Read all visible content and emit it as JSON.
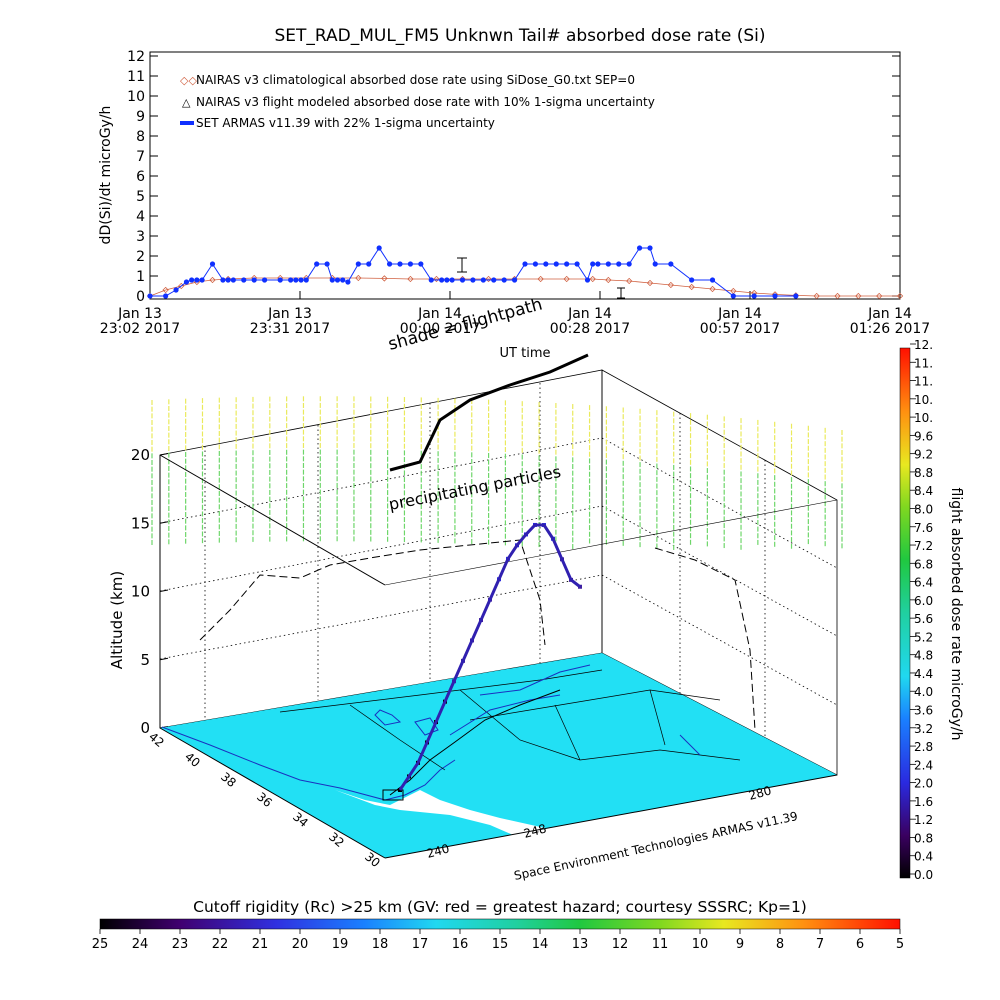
{
  "chart_data": [
    {
      "type": "line",
      "title": "SET_RAD_MUL_FM5 Unknwn Tail#  absorbed dose rate (Si)",
      "ylabel": "dD(Si)/dt microGy/h",
      "xlabel": "UT time",
      "ylim": [
        0,
        12
      ],
      "y_ticks": [
        "0",
        "1",
        "2",
        "3",
        "4",
        "5",
        "6",
        "7",
        "8",
        "9",
        "10",
        "11",
        "12"
      ],
      "x_ticks": [
        {
          "date": "Jan 13",
          "time": "23:02",
          "year": "2017"
        },
        {
          "date": "Jan 13",
          "time": "23:31",
          "year": "2017"
        },
        {
          "date": "Jan 14",
          "time": "00:00",
          "year": "2017"
        },
        {
          "date": "Jan 14",
          "time": "00:28",
          "year": "2017"
        },
        {
          "date": "Jan 14",
          "time": "00:57",
          "year": "2017"
        },
        {
          "date": "Jan 14",
          "time": "01:26",
          "year": "2017"
        }
      ],
      "xlim_minutes_after_2302": [
        0,
        144
      ],
      "legend": [
        "NAIRAS v3 climatological absorbed dose rate using SiDose_G0.txt SEP=0",
        "NAIRAS v3 flight modeled absorbed dose rate with 10% 1-sigma uncertainty",
        "SET ARMAS v11.39 with 22% 1-sigma uncertainty"
      ],
      "legend_position": "top-left",
      "series": [
        {
          "name": "NAIRAS v3 climatological absorbed dose rate using SiDose_G0.txt SEP=0",
          "color": "#d06040",
          "marker": "diamond",
          "x": [
            0,
            3,
            6,
            9,
            12,
            15,
            20,
            25,
            30,
            35,
            40,
            45,
            50,
            55,
            60,
            65,
            70,
            75,
            80,
            85,
            88,
            92,
            96,
            100,
            104,
            108,
            112,
            116,
            120,
            124,
            128,
            132,
            136,
            140,
            144
          ],
          "y": [
            0.0,
            0.3,
            0.5,
            0.7,
            0.8,
            0.85,
            0.9,
            0.9,
            0.9,
            0.9,
            0.9,
            0.88,
            0.85,
            0.85,
            0.85,
            0.85,
            0.85,
            0.85,
            0.85,
            0.85,
            0.8,
            0.75,
            0.65,
            0.55,
            0.45,
            0.35,
            0.25,
            0.15,
            0.08,
            0.03,
            0.0,
            0.0,
            0.0,
            0.0,
            0.0
          ]
        },
        {
          "name": "SET ARMAS v11.39 with 22% 1-sigma uncertainty",
          "color": "#1030ff",
          "marker": "filled-circle",
          "x": [
            0,
            3,
            5,
            7,
            8,
            9,
            10,
            12,
            14,
            15,
            16,
            18,
            20,
            22,
            25,
            27,
            28,
            29,
            30,
            32,
            34,
            35,
            36,
            37,
            38,
            40,
            42,
            44,
            46,
            48,
            50,
            52,
            54,
            56,
            57,
            58,
            60,
            62,
            64,
            66,
            68,
            70,
            72,
            74,
            76,
            78,
            80,
            82,
            84,
            85,
            86,
            88,
            90,
            92,
            94,
            96,
            97,
            100,
            104,
            108,
            112,
            116,
            120,
            124
          ],
          "y": [
            0,
            0,
            0.3,
            0.7,
            0.8,
            0.8,
            0.8,
            1.6,
            0.8,
            0.8,
            0.8,
            0.8,
            0.8,
            0.8,
            0.8,
            0.8,
            0.8,
            0.8,
            0.8,
            1.6,
            1.6,
            0.8,
            0.8,
            0.8,
            0.7,
            1.6,
            1.6,
            2.4,
            1.6,
            1.6,
            1.6,
            1.6,
            0.8,
            0.8,
            0.8,
            0.8,
            0.8,
            0.8,
            0.8,
            0.8,
            0.8,
            0.8,
            1.6,
            1.6,
            1.6,
            1.6,
            1.6,
            1.6,
            0.8,
            1.6,
            1.6,
            1.6,
            1.6,
            1.6,
            2.4,
            2.4,
            1.6,
            1.6,
            0.8,
            0.8,
            0.0,
            0.0,
            0.0,
            0.0
          ]
        }
      ]
    },
    {
      "type": "scatter",
      "subtype": "3d-map",
      "labels": [
        "shade = flightpath",
        "precipitating particles"
      ],
      "zlabel": "Altitude (km)",
      "z_ticks": [
        "0",
        "5",
        "10",
        "15",
        "20"
      ],
      "lat_ticks": [
        "42",
        "40",
        "38",
        "36",
        "34",
        "32",
        "30"
      ],
      "lon_ticks": [
        "240",
        "248",
        "280"
      ],
      "credit": "Space Environment Technologies ARMAS v11.39",
      "flight_path_altitude_km": [
        0,
        0.5,
        1,
        2,
        3,
        4,
        5,
        6,
        7,
        8,
        9,
        10,
        11,
        11.5,
        11.8,
        12,
        11.5,
        10,
        8,
        6,
        5
      ]
    }
  ],
  "colorbar_right": {
    "label": "flight absorbed dose rate microGy/h",
    "ticks": [
      "0.0",
      "0.4",
      "0.8",
      "1.2",
      "1.6",
      "2.0",
      "2.4",
      "2.8",
      "3.2",
      "3.6",
      "4.0",
      "4.4",
      "4.8",
      "5.2",
      "5.6",
      "6.0",
      "6.4",
      "6.8",
      "7.2",
      "7.6",
      "8.0",
      "8.4",
      "8.8",
      "9.2",
      "9.6",
      "10.",
      "10.",
      "11.",
      "11.",
      "12."
    ]
  },
  "colorbar_bottom": {
    "label": "Cutoff rigidity (Rc) >25 km (GV: red = greatest hazard; courtesy SSSRC; Kp=1)",
    "ticks": [
      "25",
      "24",
      "23",
      "22",
      "21",
      "20",
      "19",
      "18",
      "17",
      "16",
      "15",
      "14",
      "13",
      "12",
      "11",
      "10",
      "9",
      "8",
      "7",
      "6",
      "5"
    ]
  },
  "colors": {
    "nairas": "#d06040",
    "armas": "#1030ff",
    "map_fill": "#22e0f4",
    "particles_low": "#6ed66a",
    "particles_high": "#eaea5c"
  }
}
